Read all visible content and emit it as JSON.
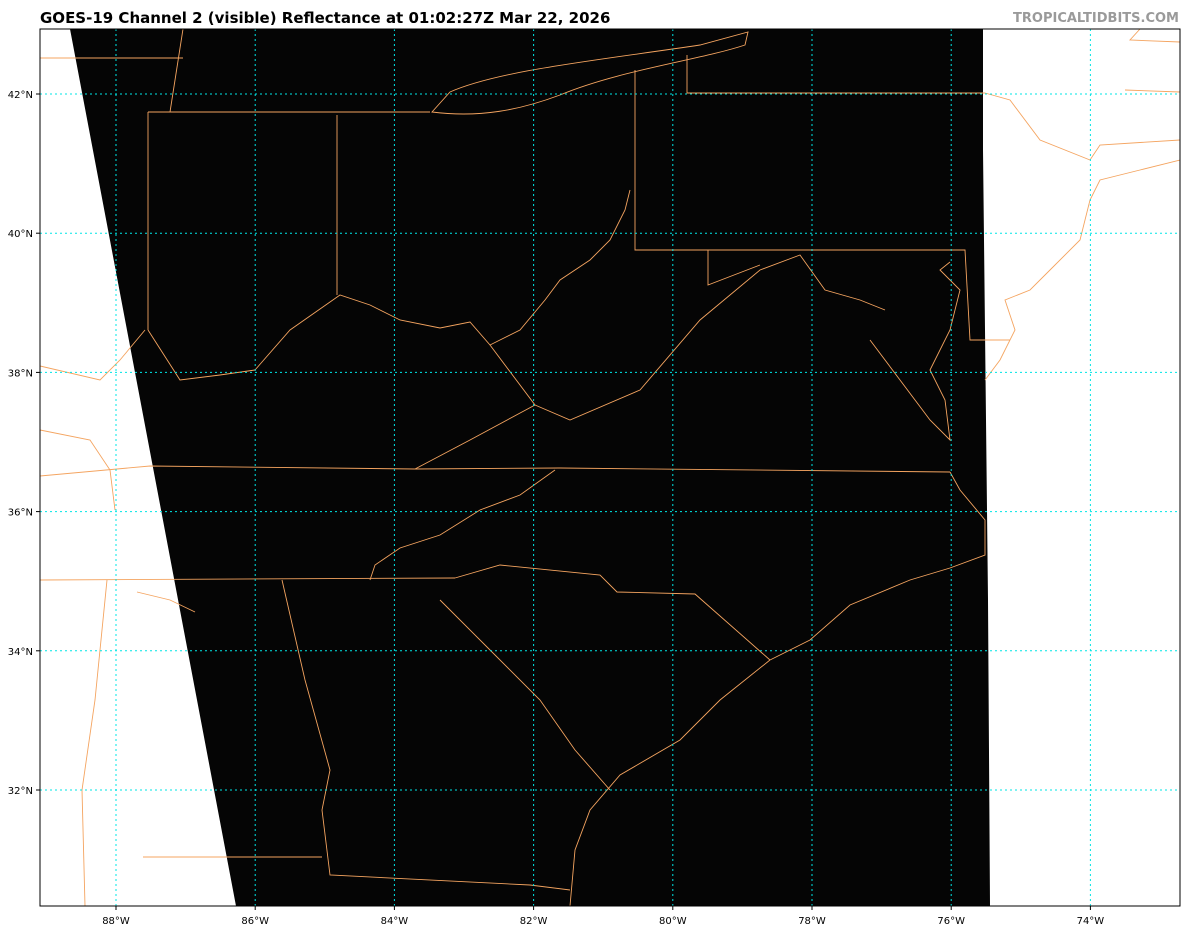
{
  "title": "GOES-19 Channel 2 (visible) Reflectance at 01:02:27Z Mar 22, 2026",
  "watermark": "TROPICALTIDBITS.COM",
  "map": {
    "satellite": "GOES-19",
    "channel": "Channel 2 (visible)",
    "product": "Reflectance",
    "valid_time": "01:02:27Z Mar 22, 2026",
    "lon_range": [
      -89.1,
      -72.7
    ],
    "lat_range": [
      30.3,
      42.9
    ],
    "lat_labels": [
      "42°N",
      "40°N",
      "38°N",
      "36°N",
      "34°N",
      "32°N"
    ],
    "lon_labels": [
      "88°W",
      "86°W",
      "84°W",
      "82°W",
      "80°W",
      "78°W",
      "76°W",
      "74°W"
    ],
    "colors": {
      "imagery": "#000000",
      "borders": "#f4a460",
      "gridlines": "#00e5e5",
      "no_data": "#ffffff"
    }
  }
}
